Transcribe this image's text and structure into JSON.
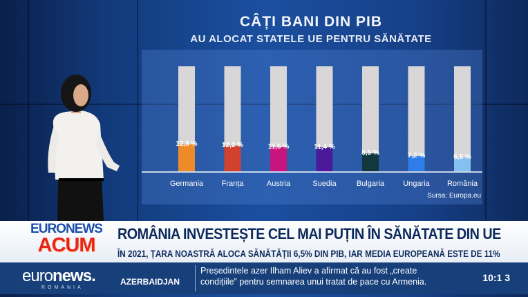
{
  "chart_data": {
    "type": "bar",
    "title": "CÂȚI BANI DIN PIB",
    "subtitle": "AU ALOCAT STATELE UE PENTRU SĂNĂTATE",
    "categories": [
      "Germania",
      "Franța",
      "Austria",
      "Suedia",
      "Bulgaria",
      "Ungaria",
      "România"
    ],
    "values": [
      12.8,
      12.2,
      11.5,
      11.4,
      8.5,
      7.2,
      6.5
    ],
    "data_labels": [
      "12,8 %",
      "12,2 %",
      "11,5 %",
      "11,4 %",
      "8,5 %",
      "7,2 %",
      "6,5 %"
    ],
    "colors": [
      "#ef8a2a",
      "#d2412e",
      "#c8157e",
      "#4a1a9a",
      "#12383e",
      "#2f7de8",
      "#86c0f0"
    ],
    "ylim": [
      0,
      50
    ],
    "grid": false,
    "source": "Sursa: Europa.eu"
  },
  "lower_third": {
    "logo_top": "EURONEWS",
    "logo_bottom": "ACUM",
    "headline": "ROMÂNIA INVESTEȘTE CEL MAI PUȚIN ÎN SĂNĂTATE DIN UE",
    "subheadline": "ÎN 2021, ȚARA NOASTRĂ ALOCA SĂNĂTĂȚII 6,5% DIN PIB, IAR MEDIA EUROPEANĂ ESTE DE 11%"
  },
  "ticker": {
    "logo_a": "euro",
    "logo_b": "news.",
    "logo_sub": "ROMANIA",
    "topic": "AZERBAIDJAN",
    "line1": "Președintele azer Ilham Aliev a afirmat că au fost  „create",
    "line2": "condițiile” pentru semnarea unui tratat de pace cu Armenia.",
    "time": "10:1 3"
  }
}
